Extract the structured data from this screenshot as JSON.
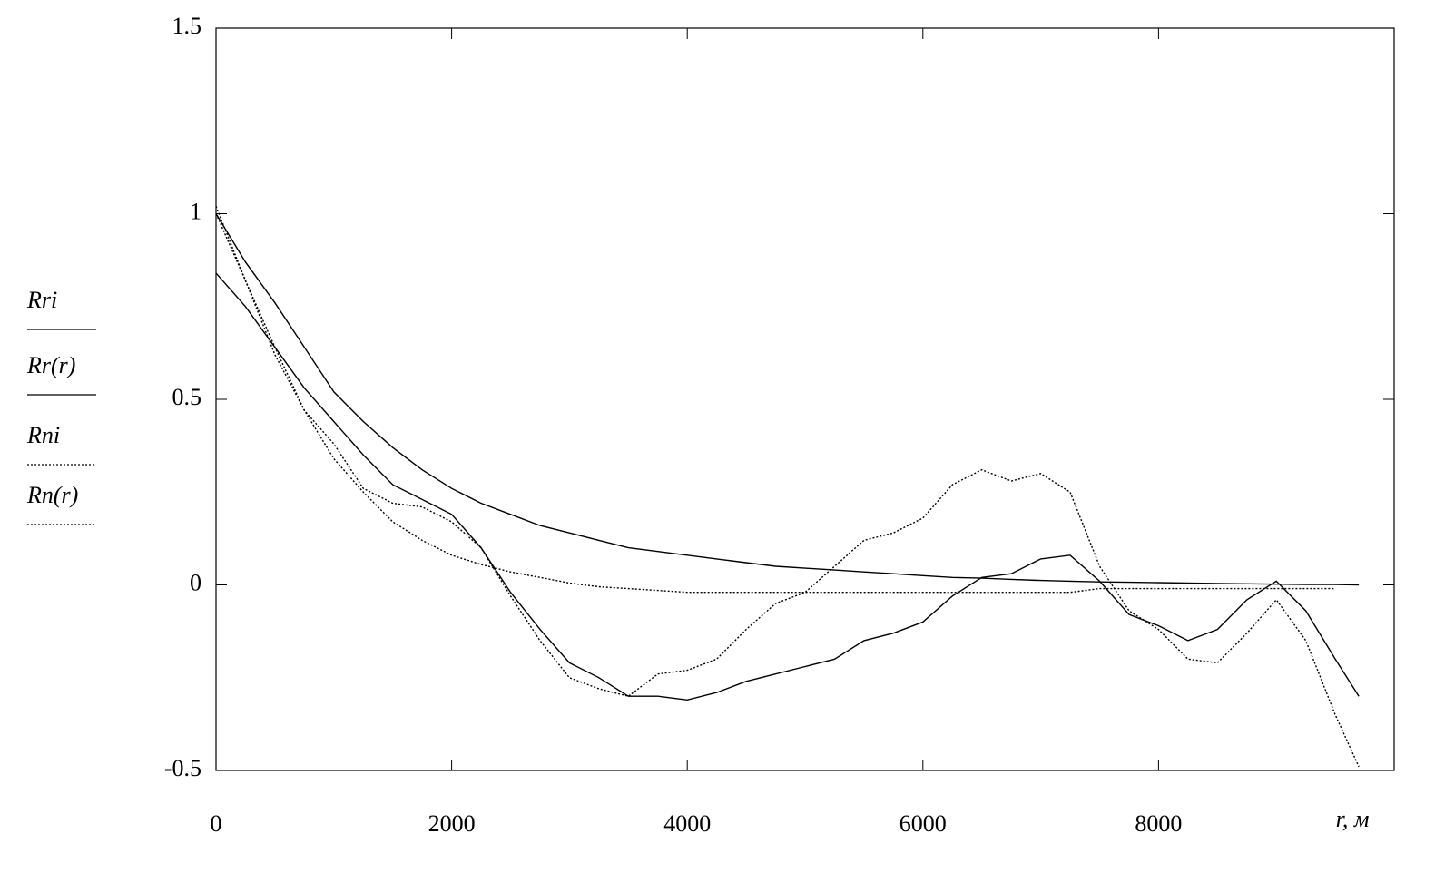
{
  "chart_data": {
    "type": "line",
    "x_label": "r, м",
    "xlim": [
      0,
      10000
    ],
    "ylim": [
      -0.5,
      1.5
    ],
    "xticks": [
      0,
      2000,
      4000,
      6000,
      8000
    ],
    "yticks": [
      -0.5,
      0,
      0.5,
      1,
      1.5
    ],
    "x": [
      0,
      250,
      500,
      750,
      1000,
      1250,
      1500,
      1750,
      2000,
      2250,
      2500,
      2750,
      3000,
      3250,
      3500,
      3750,
      4000,
      4250,
      4500,
      4750,
      5000,
      5250,
      5500,
      5750,
      6000,
      6250,
      6500,
      6750,
      7000,
      7250,
      7500,
      7750,
      8000,
      8250,
      8500,
      8750,
      9000,
      9250,
      9500,
      9700
    ],
    "series": [
      {
        "name": "Rri",
        "color": "#000000",
        "dash": "solid",
        "values": [
          0.84,
          0.75,
          0.64,
          0.53,
          0.44,
          0.35,
          0.27,
          0.23,
          0.19,
          0.1,
          -0.02,
          -0.12,
          -0.21,
          -0.25,
          -0.3,
          -0.3,
          -0.31,
          -0.29,
          -0.26,
          -0.24,
          -0.22,
          -0.2,
          -0.15,
          -0.13,
          -0.1,
          -0.03,
          0.02,
          0.03,
          0.07,
          0.08,
          0.01,
          -0.08,
          -0.11,
          -0.15,
          -0.12,
          -0.04,
          0.01,
          -0.07,
          -0.2,
          -0.3
        ]
      },
      {
        "name": "Rr(r)",
        "color": "#000000",
        "dash": "solid",
        "values": [
          1.0,
          0.87,
          0.76,
          0.64,
          0.52,
          0.44,
          0.37,
          0.31,
          0.26,
          0.22,
          0.19,
          0.16,
          0.14,
          0.12,
          0.1,
          0.09,
          0.08,
          0.07,
          0.06,
          0.05,
          0.045,
          0.04,
          0.035,
          0.03,
          0.025,
          0.02,
          0.018,
          0.015,
          0.012,
          0.01,
          0.008,
          0.007,
          0.006,
          0.005,
          0.004,
          0.003,
          0.002,
          0.001,
          0.001,
          0
        ]
      },
      {
        "name": "Rni",
        "color": "#000000",
        "dash": "dotted",
        "values": [
          1.02,
          0.82,
          0.62,
          0.47,
          0.38,
          0.26,
          0.22,
          0.21,
          0.17,
          0.1,
          -0.03,
          -0.15,
          -0.25,
          -0.28,
          -0.3,
          -0.24,
          -0.23,
          -0.2,
          -0.12,
          -0.05,
          -0.02,
          0.05,
          0.12,
          0.14,
          0.18,
          0.27,
          0.31,
          0.28,
          0.3,
          0.25,
          0.05,
          -0.07,
          -0.12,
          -0.2,
          -0.21,
          -0.13,
          -0.04,
          -0.15,
          -0.35,
          -0.49
        ]
      },
      {
        "name": "Rn(r)",
        "color": "#000000",
        "dash": "dotted",
        "values": [
          1.0,
          0.82,
          0.64,
          0.47,
          0.34,
          0.25,
          0.17,
          0.12,
          0.08,
          0.055,
          0.035,
          0.02,
          0.005,
          -0.005,
          -0.01,
          -0.015,
          -0.02,
          -0.02,
          -0.02,
          -0.02,
          -0.02,
          -0.02,
          -0.02,
          -0.02,
          -0.02,
          -0.02,
          -0.02,
          -0.02,
          -0.02,
          -0.02,
          -0.01,
          -0.01,
          -0.01,
          -0.01,
          -0.01,
          -0.01,
          -0.01,
          -0.01,
          -0.01,
          null
        ]
      }
    ]
  }
}
